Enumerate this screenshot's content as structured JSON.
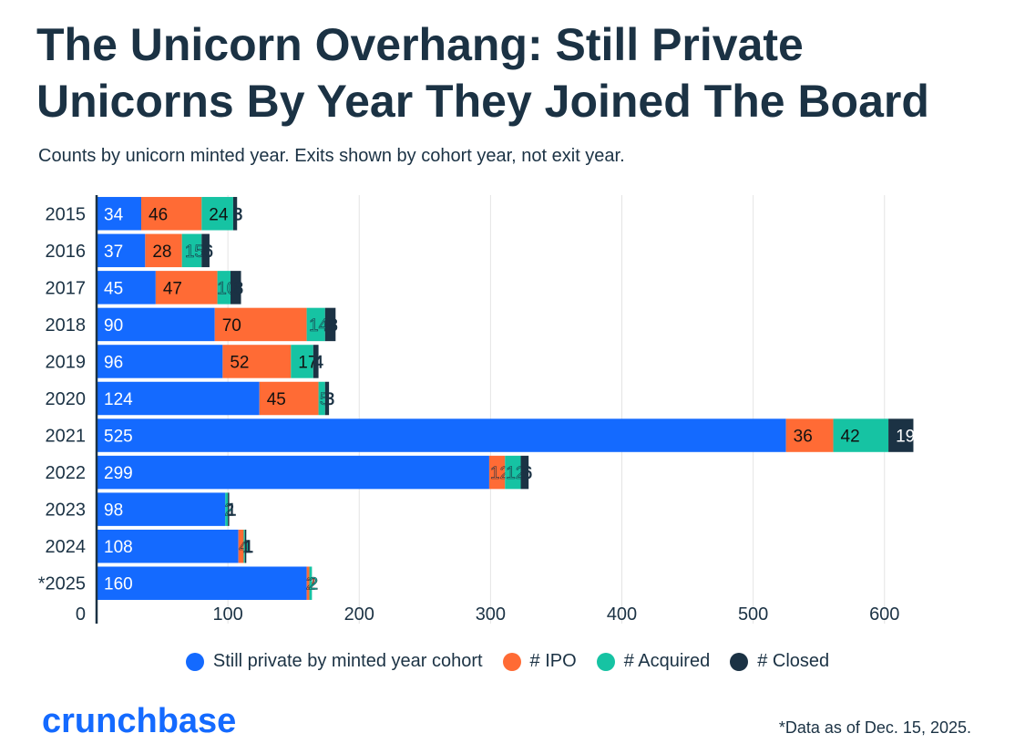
{
  "chart_data": {
    "type": "bar",
    "orientation": "horizontal",
    "stacked": true,
    "title": "The Unicorn Overhang: Still Private Unicorns By Year They Joined The Board",
    "subtitle": "Counts by unicorn minted year. Exits shown by cohort year, not exit year.",
    "categories": [
      "2015",
      "2016",
      "2017",
      "2018",
      "2019",
      "2020",
      "2021",
      "2022",
      "2023",
      "2024",
      "*2025"
    ],
    "series": [
      {
        "name": "Still private by minted year cohort",
        "color": "#146aff",
        "label_color": "#ffffff",
        "values": [
          34,
          37,
          45,
          90,
          96,
          124,
          525,
          299,
          98,
          108,
          160
        ]
      },
      {
        "name": "# IPO",
        "color": "#ff6b35",
        "label_color": "#111111",
        "values": [
          46,
          28,
          47,
          70,
          52,
          45,
          36,
          12,
          0,
          4,
          2
        ]
      },
      {
        "name": "# Acquired",
        "color": "#16c3a3",
        "label_color": "#111111",
        "values": [
          24,
          15,
          10,
          14,
          17,
          5,
          42,
          12,
          2,
          1,
          2
        ]
      },
      {
        "name": "# Closed",
        "color": "#1b3244",
        "label_color": "#ffffff",
        "values": [
          3,
          6,
          8,
          8,
          4,
          3,
          19,
          6,
          1,
          1,
          0
        ]
      }
    ],
    "xlim": [
      0,
      630
    ],
    "xticks": [
      0,
      100,
      200,
      300,
      400,
      500,
      600
    ],
    "xlabel": "",
    "ylabel": "",
    "grid": true,
    "legend": "bottom"
  },
  "brand": "crunchbase",
  "footnote": "*Data as of Dec. 15, 2025."
}
